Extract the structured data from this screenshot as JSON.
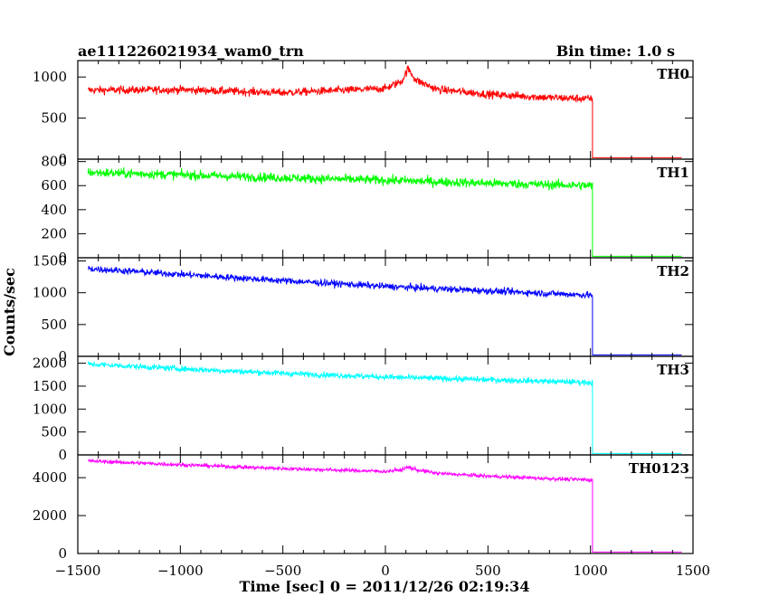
{
  "chart_data": {
    "type": "line",
    "title": "ae111226021934_wam0_trn",
    "subtitle": "Bin time: 1.0 s",
    "xlabel": "Time [sec] 0 = 2011/12/26 02:19:34",
    "ylabel": "Counts/sec",
    "xlim": [
      -1500,
      1500
    ],
    "xticks": [
      -1500,
      -1000,
      -500,
      0,
      500,
      1000,
      1500
    ],
    "xtick_labels": [
      "−1500",
      "−1000",
      "−500",
      "0",
      "500",
      "1000",
      "1500"
    ],
    "grid": false,
    "data_end_time": 1010,
    "panels": [
      {
        "name": "TH0",
        "color": "#ff0000",
        "ylim": [
          0,
          1200
        ],
        "yticks": [
          0,
          500,
          1000
        ],
        "series": {
          "x": [
            -1450,
            -1000,
            -500,
            0,
            80,
            110,
            150,
            250,
            500,
            800,
            1010
          ],
          "y": [
            840,
            845,
            810,
            860,
            950,
            1100,
            960,
            850,
            790,
            750,
            735
          ]
        },
        "noise": 35
      },
      {
        "name": "TH1",
        "color": "#00ff00",
        "ylim": [
          0,
          820
        ],
        "yticks": [
          0,
          200,
          400,
          600,
          800
        ],
        "series": {
          "x": [
            -1450,
            -1000,
            -500,
            0,
            500,
            1010
          ],
          "y": [
            710,
            690,
            665,
            645,
            620,
            600
          ]
        },
        "noise": 28
      },
      {
        "name": "TH2",
        "color": "#0000ff",
        "ylim": [
          0,
          1550
        ],
        "yticks": [
          0,
          500,
          1000,
          1500
        ],
        "series": {
          "x": [
            -1450,
            -1000,
            -500,
            0,
            500,
            1010
          ],
          "y": [
            1380,
            1290,
            1190,
            1100,
            1030,
            960
          ]
        },
        "noise": 38
      },
      {
        "name": "TH3",
        "color": "#00ffff",
        "ylim": [
          0,
          2150
        ],
        "yticks": [
          0,
          500,
          1000,
          1500,
          2000
        ],
        "series": {
          "x": [
            -1450,
            -1000,
            -500,
            0,
            500,
            1010
          ],
          "y": [
            1980,
            1880,
            1780,
            1700,
            1640,
            1580
          ]
        },
        "noise": 45
      },
      {
        "name": "TH0123",
        "color": "#ff00ff",
        "ylim": [
          0,
          5200
        ],
        "yticks": [
          0,
          2000,
          4000
        ],
        "series": {
          "x": [
            -1450,
            -1000,
            -500,
            0,
            80,
            110,
            150,
            250,
            500,
            800,
            1010
          ],
          "y": [
            4880,
            4680,
            4480,
            4330,
            4420,
            4560,
            4420,
            4230,
            4080,
            3950,
            3880
          ]
        },
        "noise": 70
      }
    ]
  }
}
